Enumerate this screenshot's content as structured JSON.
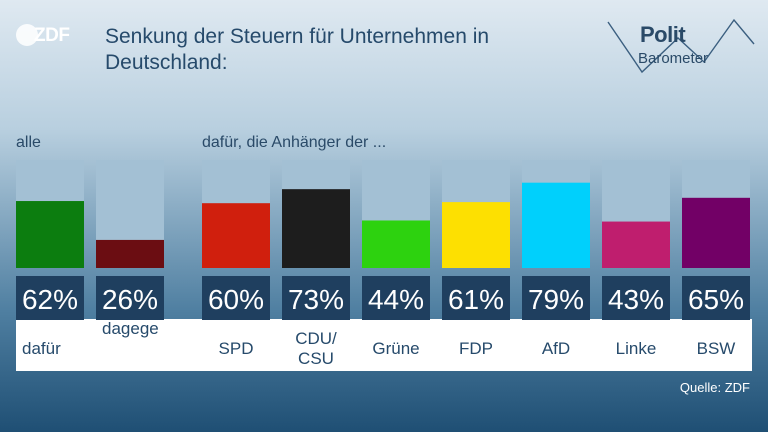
{
  "header": {
    "logo_text": "ZDF",
    "title": "Senkung der Steuern für Unternehmen in Deutschland:",
    "brand_word1": "Polit",
    "brand_word2": "Barometer"
  },
  "sections": {
    "all_label": "alle",
    "party_label": "dafür, die Anhänger der ..."
  },
  "source": "Quelle: ZDF",
  "colors": {
    "track": "#a3c0d4",
    "value_box": "#1f3f5f",
    "value_text": "#ffffff",
    "label_text": "#264a6b"
  },
  "chart_data": {
    "type": "bar",
    "ylim": [
      0,
      100
    ],
    "unit": "%",
    "groups": [
      "alle",
      "dafür, die Anhänger der ..."
    ],
    "categories": [
      "dafür",
      "dagegen",
      "SPD",
      "CDU/CSU",
      "Grüne",
      "FDP",
      "AfD",
      "Linke",
      "BSW"
    ],
    "category_labels": [
      [
        "dafür"
      ],
      [
        "dagege"
      ],
      [
        "SPD"
      ],
      [
        "CDU/",
        "CSU"
      ],
      [
        "Grüne"
      ],
      [
        "FDP"
      ],
      [
        "AfD"
      ],
      [
        "Linke"
      ],
      [
        "BSW"
      ]
    ],
    "values": [
      62,
      26,
      60,
      73,
      44,
      61,
      79,
      43,
      65
    ],
    "value_labels": [
      "62%",
      "26%",
      "60%",
      "73%",
      "44%",
      "61%",
      "79%",
      "43%",
      "65%"
    ],
    "colors": [
      "#0c7d0f",
      "#6b0d12",
      "#d01f0d",
      "#1d1d1d",
      "#2dd20f",
      "#fde001",
      "#00d0fc",
      "#bf1e6e",
      "#720066"
    ]
  }
}
